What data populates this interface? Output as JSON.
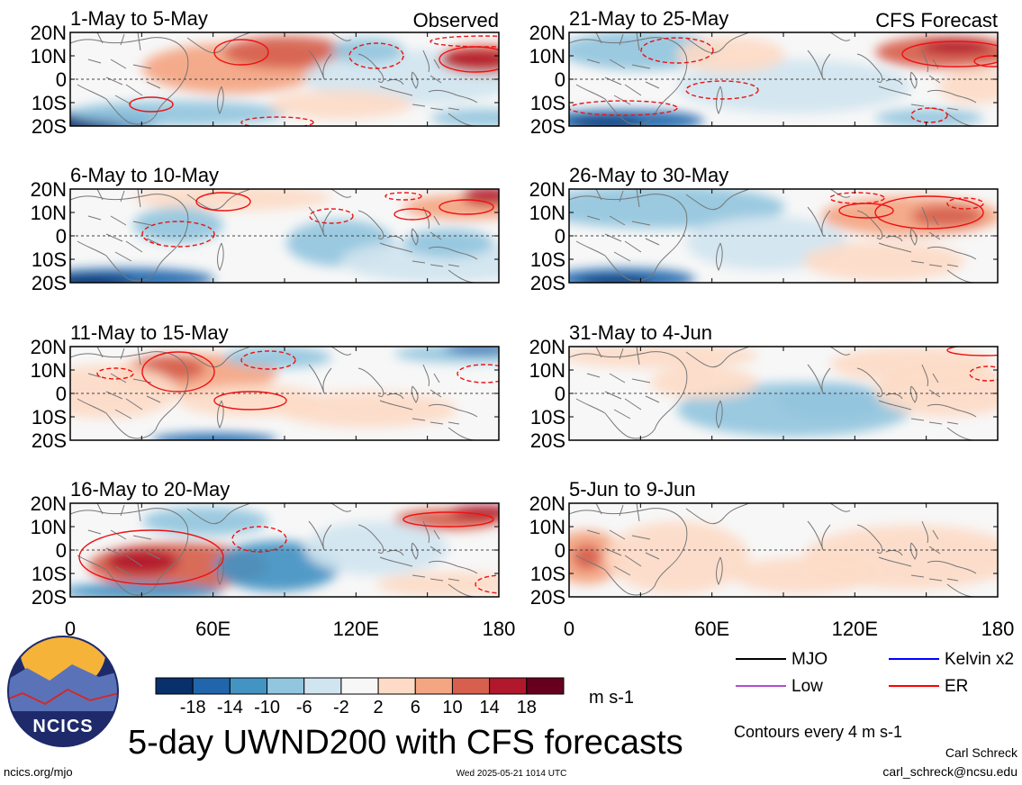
{
  "panels": [
    {
      "title": "1-May to 5-May",
      "tag": "Observed"
    },
    {
      "title": "6-May to 10-May",
      "tag": ""
    },
    {
      "title": "11-May to 15-May",
      "tag": ""
    },
    {
      "title": "16-May to 20-May",
      "tag": ""
    },
    {
      "title": "21-May to 25-May",
      "tag": "CFS Forecast"
    },
    {
      "title": "26-May to 30-May",
      "tag": ""
    },
    {
      "title": "31-May to 4-Jun",
      "tag": ""
    },
    {
      "title": "5-Jun to 9-Jun",
      "tag": ""
    }
  ],
  "lat_labels": [
    "20N",
    "10N",
    "0",
    "10S",
    "20S"
  ],
  "lon_labels": [
    "0",
    "60E",
    "120E",
    "180"
  ],
  "colorbar": {
    "ticks": [
      "-18",
      "-14",
      "-10",
      "-6",
      "-2",
      "2",
      "6",
      "10",
      "14",
      "18"
    ],
    "colors": [
      "#08306b",
      "#2166ac",
      "#4393c3",
      "#92c5de",
      "#d1e5f0",
      "#f7f7f7",
      "#fddbc7",
      "#f4a582",
      "#d6604d",
      "#b2182b",
      "#67001f"
    ],
    "units": "m s-1"
  },
  "legend": {
    "items": [
      {
        "label": "MJO",
        "color": "#000000"
      },
      {
        "label": "Kelvin x2",
        "color": "#0000ff"
      },
      {
        "label": "Low",
        "color": "#b050d0"
      },
      {
        "label": "ER",
        "color": "#ff0000"
      }
    ],
    "contour_note": "Contours every 4 m s-1"
  },
  "main_title": "5-day UWND200 with CFS forecasts",
  "logo_text": "NCICS",
  "footer": {
    "left": "ncics.org/mjo",
    "center": "Wed 2025-05-21 1014 UTC",
    "author": "Carl Schreck",
    "email": "carl_schreck@ncsu.edu"
  }
}
